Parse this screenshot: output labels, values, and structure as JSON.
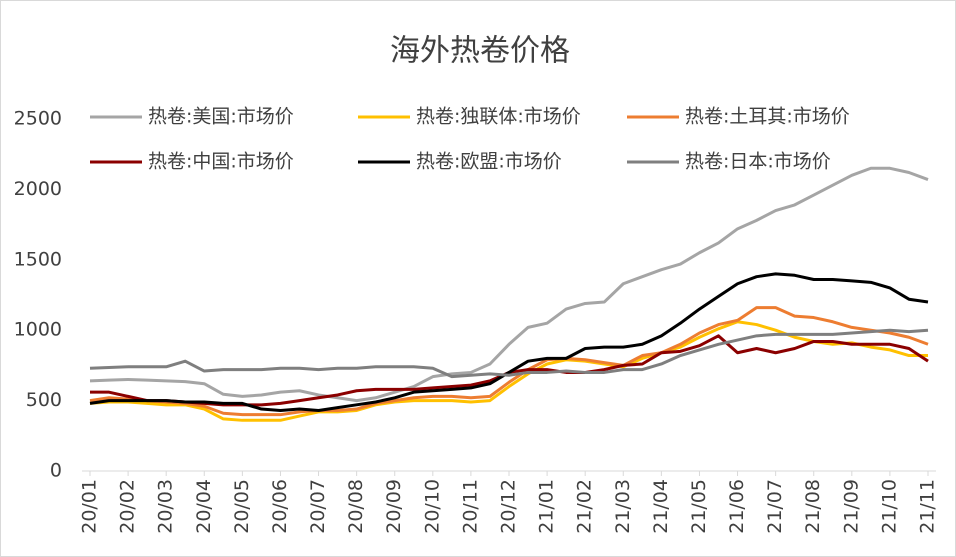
{
  "chart_data": {
    "type": "line",
    "title": "海外热卷价格",
    "legend": "top",
    "categories": [
      "20/01",
      null,
      "20/02",
      null,
      "20/03",
      null,
      "20/04",
      null,
      "20/05",
      null,
      "20/06",
      null,
      "20/07",
      null,
      "20/08",
      null,
      "20/09",
      null,
      "20/10",
      null,
      "20/11",
      null,
      "20/12",
      null,
      "21/01",
      null,
      "21/02",
      null,
      "21/03",
      null,
      "21/04",
      null,
      "21/05",
      null,
      "21/06",
      null,
      "21/07",
      null,
      "21/08",
      null,
      "21/09",
      null,
      "21/10",
      null,
      "21/11"
    ],
    "ylim": [
      0,
      2500
    ],
    "yticks": [
      0,
      500,
      1000,
      1500,
      2000,
      2500
    ],
    "series": [
      {
        "name": "热卷:美国:市场价",
        "color": "#a5a5a5",
        "values": [
          640,
          645,
          650,
          645,
          640,
          635,
          620,
          545,
          530,
          540,
          560,
          570,
          540,
          520,
          500,
          520,
          560,
          600,
          670,
          690,
          700,
          760,
          900,
          1020,
          1050,
          1150,
          1190,
          1200,
          1330,
          1380,
          1430,
          1470,
          1550,
          1620,
          1720,
          1780,
          1850,
          1890,
          1960,
          2030,
          2100,
          2150,
          2150,
          2120,
          2070
        ]
      },
      {
        "name": "热卷:独联体:市场价",
        "color": "#ffc000",
        "values": [
          480,
          490,
          490,
          480,
          470,
          470,
          440,
          370,
          360,
          360,
          360,
          390,
          420,
          420,
          430,
          470,
          490,
          500,
          500,
          500,
          490,
          500,
          600,
          690,
          760,
          790,
          780,
          760,
          740,
          800,
          840,
          880,
          950,
          1010,
          1060,
          1040,
          1000,
          950,
          920,
          900,
          910,
          880,
          860,
          820,
          820
        ]
      },
      {
        "name": "热卷:土耳其:市场价",
        "color": "#ed7d31",
        "values": [
          500,
          520,
          510,
          500,
          490,
          480,
          460,
          410,
          400,
          400,
          400,
          420,
          430,
          430,
          440,
          480,
          500,
          520,
          530,
          530,
          520,
          530,
          630,
          720,
          790,
          800,
          790,
          770,
          750,
          820,
          840,
          900,
          980,
          1040,
          1070,
          1160,
          1160,
          1100,
          1090,
          1060,
          1020,
          1000,
          980,
          950,
          900
        ]
      },
      {
        "name": "热卷:中国:市场价",
        "color": "#8b0000",
        "values": [
          560,
          560,
          530,
          500,
          500,
          490,
          480,
          470,
          470,
          470,
          480,
          500,
          520,
          540,
          570,
          580,
          580,
          580,
          590,
          600,
          610,
          640,
          700,
          720,
          720,
          700,
          700,
          720,
          750,
          760,
          840,
          850,
          890,
          960,
          840,
          870,
          840,
          870,
          920,
          920,
          900,
          900,
          900,
          870,
          780
        ]
      },
      {
        "name": "热卷:欧盟:市场价",
        "color": "#000000",
        "values": [
          480,
          500,
          500,
          500,
          500,
          490,
          490,
          480,
          480,
          440,
          430,
          440,
          430,
          450,
          470,
          490,
          520,
          560,
          570,
          580,
          590,
          620,
          700,
          780,
          800,
          800,
          870,
          880,
          880,
          900,
          960,
          1050,
          1150,
          1240,
          1330,
          1380,
          1400,
          1390,
          1360,
          1360,
          1350,
          1340,
          1300,
          1220,
          1200
        ]
      },
      {
        "name": "热卷:日本:市场价",
        "color": "#7f7f7f",
        "values": [
          730,
          735,
          740,
          740,
          740,
          780,
          710,
          720,
          720,
          720,
          730,
          730,
          720,
          730,
          730,
          740,
          740,
          740,
          730,
          670,
          680,
          690,
          680,
          700,
          700,
          710,
          700,
          700,
          720,
          720,
          760,
          820,
          860,
          900,
          930,
          960,
          970,
          970,
          970,
          970,
          980,
          990,
          1000,
          990,
          1000
        ]
      }
    ]
  }
}
